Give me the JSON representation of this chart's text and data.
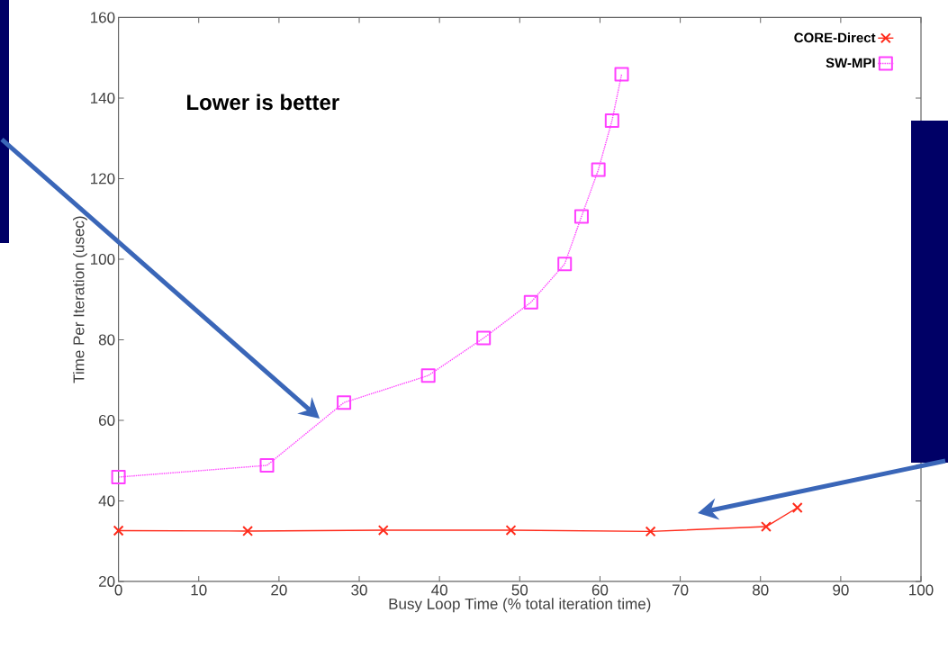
{
  "chart_data": {
    "type": "line",
    "xlabel": "Busy Loop Time (% total iteration time)",
    "ylabel": "Time Per Iteration (usec)",
    "xlim": [
      0,
      100
    ],
    "xticks": [
      0,
      10,
      20,
      30,
      40,
      50,
      60,
      70,
      80,
      90,
      100
    ],
    "ylim": [
      20,
      160
    ],
    "yticks": [
      20,
      40,
      60,
      80,
      100,
      120,
      140,
      160
    ],
    "legend": "top right",
    "annotations": [
      "Lower is better"
    ],
    "series": [
      {
        "name": "CORE-Direct",
        "color": "#ff2a1a",
        "marker": "cross",
        "line_style": "solid",
        "x": [
          0,
          16.1,
          33.0,
          48.9,
          66.3,
          80.7,
          84.6
        ],
        "values": [
          32.6,
          32.5,
          32.7,
          32.7,
          32.4,
          33.6,
          38.3
        ]
      },
      {
        "name": "SW-MPI",
        "color": "#ff40ff",
        "marker": "square",
        "line_style": "dotted",
        "x": [
          0,
          18.5,
          28.1,
          38.6,
          45.5,
          51.4,
          55.6,
          57.7,
          59.8,
          61.5,
          62.7
        ],
        "values": [
          45.9,
          48.8,
          64.4,
          71.1,
          80.4,
          89.3,
          98.8,
          110.6,
          122.2,
          134.4,
          145.9
        ]
      }
    ]
  }
}
